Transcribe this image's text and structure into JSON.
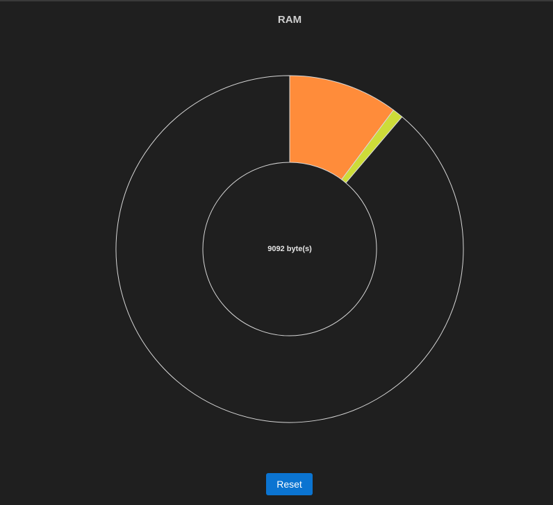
{
  "chart_data": {
    "type": "donut",
    "title": "RAM",
    "center_label": "9092 byte(s)",
    "values": [
      10.2,
      1,
      88.8
    ],
    "colors": [
      "#ff8c3a",
      "#cddc39",
      "#1f1f1f"
    ],
    "stroke": "#d8d8d8"
  },
  "button": {
    "label": "Reset"
  }
}
